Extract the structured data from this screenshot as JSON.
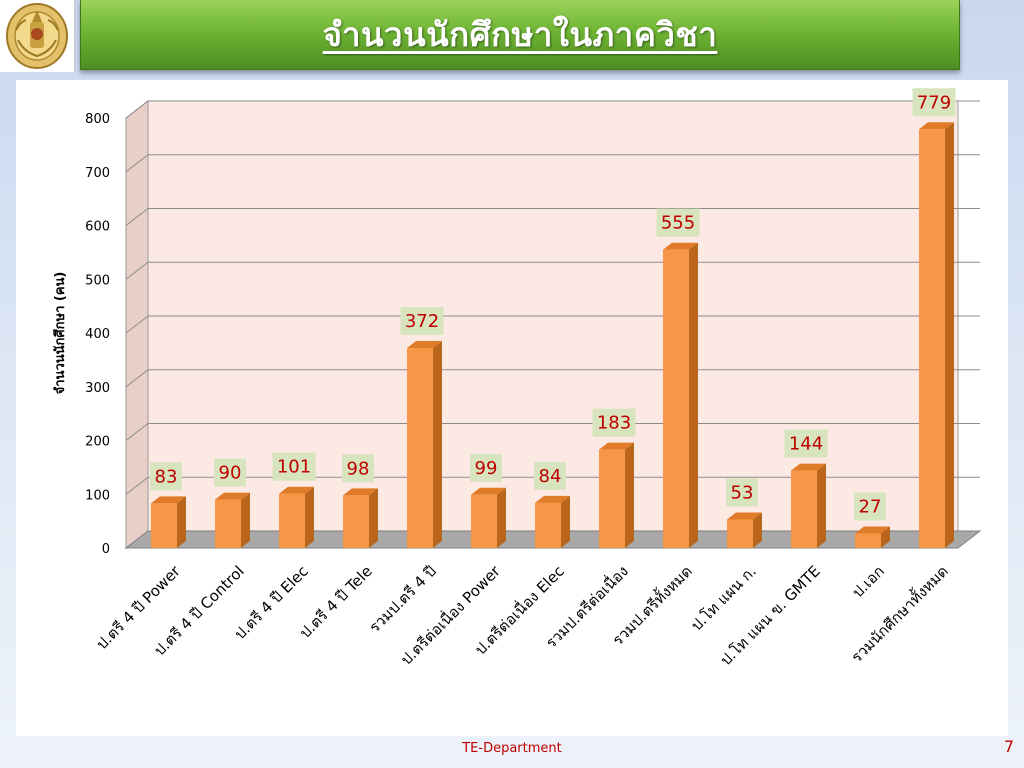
{
  "slide": {
    "title": "จำนวนนักศึกษาในภาควิชา",
    "footer": "TE-Department",
    "page_number": "7",
    "logo_icon": "royal-emblem-icon"
  },
  "colors": {
    "bar_front": "#f79646",
    "bar_side": "#b9651c",
    "bar_top": "#e07b2a",
    "plot_back": "#fde9e4",
    "label_bg": "#d7e4bd",
    "label_text": "#c00000",
    "title_green": "#6fb534"
  },
  "chart_data": {
    "type": "bar",
    "title": "",
    "xlabel": "",
    "ylabel": "จำนวนนักศึกษา (คน)",
    "ylim": [
      0,
      800
    ],
    "yticks": [
      0,
      100,
      200,
      300,
      400,
      500,
      600,
      700,
      800
    ],
    "grid": true,
    "legend": "none",
    "categories": [
      "ป.ตรี 4 ปี Power",
      "ป.ตรี 4 ปี Control",
      "ป.ตรี 4 ปี Elec",
      "ป.ตรี 4 ปี Tele",
      "รวมป.ตรี 4 ปี",
      "ป.ตรีต่อเนื่อง Power",
      "ป.ตรีต่อเนื่อง Elec",
      "รวมป.ตรีต่อเนื่อง",
      "รวมป.ตรีทั้งหมด",
      "ป.โท แผน ก.",
      "ป.โท แผน ข. GMTE",
      "ป.เอก",
      "รวมนักศึกษาทั้งหมด"
    ],
    "values": [
      83,
      90,
      101,
      98,
      372,
      99,
      84,
      183,
      555,
      53,
      144,
      27,
      779
    ],
    "data_labels": [
      "83",
      "90",
      "101",
      "98",
      "372",
      "99",
      "84",
      "183",
      "555",
      "53",
      "144",
      "27",
      "779"
    ]
  }
}
